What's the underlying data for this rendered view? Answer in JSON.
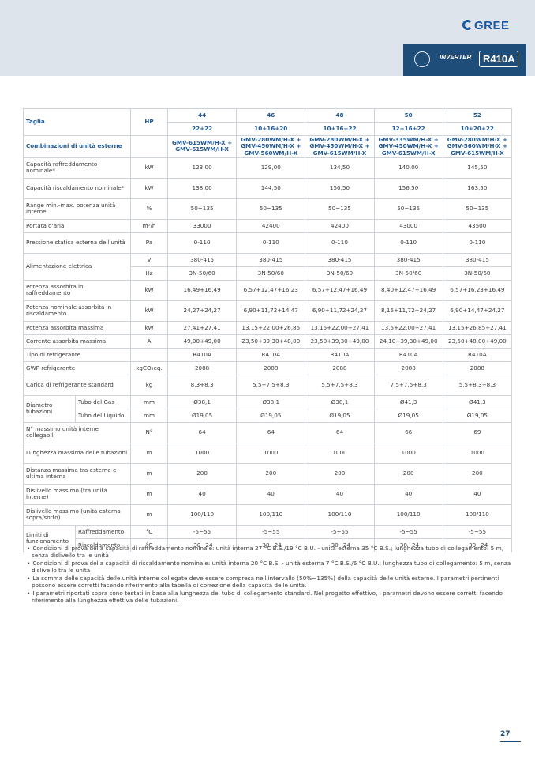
{
  "header": {
    "logo": "GREE",
    "badge_inverter": "INVERTER",
    "badge_refrigerant": "R410A"
  },
  "table": {
    "head": {
      "label": "Taglia",
      "unit": "HP",
      "sizes": [
        "44",
        "46",
        "48",
        "50",
        "52"
      ],
      "combos": [
        "22+22",
        "10+16+20",
        "10+16+22",
        "12+16+22",
        "10+20+22"
      ]
    },
    "rows": [
      {
        "label": "Combinazioni di unità esterne",
        "cells": [
          "GMV-615WM/H-X + GMV-615WM/H-X",
          "GMV-280WM/H-X + GMV-450WM/H-X + GMV-560WM/H-X",
          "GMV-280WM/H-X + GMV-450WM/H-X + GMV-615WM/H-X",
          "GMV-335WM/H-X + GMV-450WM/H-X + GMV-615WM/H-X",
          "GMV-280WM/H-X + GMV-560WM/H-X + GMV-615WM/H-X"
        ]
      },
      {
        "label": "Capacità raffreddamento nominale*",
        "unit": "kW",
        "cells": [
          "123,00",
          "129,00",
          "134,50",
          "140,00",
          "145,50"
        ]
      },
      {
        "label": "Capacità riscaldamento nominale*",
        "unit": "kW",
        "cells": [
          "138,00",
          "144,50",
          "150,50",
          "156,50",
          "163,50"
        ]
      },
      {
        "label": "Range min.-max. potenza unità interne",
        "unit": "%",
        "cells": [
          "50~135",
          "50~135",
          "50~135",
          "50~135",
          "50~135"
        ]
      },
      {
        "label": "Portata d'aria",
        "unit": "m³/h",
        "cells": [
          "33000",
          "42400",
          "42400",
          "43000",
          "43500"
        ]
      },
      {
        "label": "Pressione statica esterna dell'unità",
        "unit": "Pa",
        "cells": [
          "0-110",
          "0-110",
          "0-110",
          "0-110",
          "0-110"
        ]
      },
      {
        "label": "Alimentazione elettrica",
        "parts": [
          {
            "unit": "V",
            "cells": [
              "380-415",
              "380-415",
              "380-415",
              "380-415",
              "380-415"
            ]
          },
          {
            "unit": "Hz",
            "cells": [
              "3N-50/60",
              "3N-50/60",
              "3N-50/60",
              "3N-50/60",
              "3N-50/60"
            ]
          }
        ]
      },
      {
        "label": "Potenza assorbita in raffreddamento",
        "unit": "kW",
        "cells": [
          "16,49+16,49",
          "6,57+12,47+16,23",
          "6,57+12,47+16,49",
          "8,40+12,47+16,49",
          "6,57+16,23+16,49"
        ]
      },
      {
        "label": "Potenza nominale assorbita in riscaldamento",
        "unit": "kW",
        "cells": [
          "24,27+24,27",
          "6,90+11,72+14,47",
          "6,90+11,72+24,27",
          "8,15+11,72+24,27",
          "6,90+14,47+24,27"
        ]
      },
      {
        "label": "Potenza assorbita massima",
        "unit": "kW",
        "cells": [
          "27,41+27,41",
          "13,15+22,00+26,85",
          "13,15+22,00+27,41",
          "13,5+22,00+27,41",
          "13,15+26,85+27,41"
        ]
      },
      {
        "label": "Corrente assorbita massima",
        "unit": "A",
        "cells": [
          "49,00+49,00",
          "23,50+39,30+48,00",
          "23,50+39,30+49,00",
          "24,10+39,30+49,00",
          "23,50+48,00+49,00"
        ]
      },
      {
        "label": "Tipo di refrigerante",
        "cells": [
          "R410A",
          "R410A",
          "R410A",
          "R410A",
          "R410A"
        ]
      },
      {
        "label": "GWP refrigerante",
        "unit": "kgCO₂eq.",
        "cells": [
          "2088",
          "2088",
          "2088",
          "2088",
          "2088"
        ]
      },
      {
        "label": "Carica di refrigerante standard",
        "unit": "kg",
        "cells": [
          "8,3+8,3",
          "5,5+7,5+8,3",
          "5,5+7,5+8,3",
          "7,5+7,5+8,3",
          "5,5+8,3+8,3"
        ]
      },
      {
        "label": "Diametro tubazioni",
        "parts": [
          {
            "sub": "Tubo del Gas",
            "unit": "mm",
            "cells": [
              "Ø38,1",
              "Ø38,1",
              "Ø38,1",
              "Ø41,3",
              "Ø41,3"
            ]
          },
          {
            "sub": "Tubo del Liquido",
            "unit": "mm",
            "cells": [
              "Ø19,05",
              "Ø19,05",
              "Ø19,05",
              "Ø19,05",
              "Ø19,05"
            ]
          }
        ]
      },
      {
        "label": "N° massimo unità interne collegabili",
        "unit": "N°",
        "cells": [
          "64",
          "64",
          "64",
          "66",
          "69"
        ]
      },
      {
        "label": "Lunghezza massima delle tubazioni",
        "unit": "m",
        "cells": [
          "1000",
          "1000",
          "1000",
          "1000",
          "1000"
        ]
      },
      {
        "label": "Distanza massima tra esterna e ultima interna",
        "unit": "m",
        "cells": [
          "200",
          "200",
          "200",
          "200",
          "200"
        ]
      },
      {
        "label": "Dislivello massimo (tra unità interne)",
        "unit": "m",
        "cells": [
          "40",
          "40",
          "40",
          "40",
          "40"
        ]
      },
      {
        "label": "Dislivello massimo (unità esterna sopra/sotto)",
        "unit": "m",
        "cells": [
          "100/110",
          "100/110",
          "100/110",
          "100/110",
          "100/110"
        ]
      },
      {
        "label": "Limiti di funzionamento",
        "parts": [
          {
            "sub": "Raffreddamento",
            "unit": "°C",
            "cells": [
              "-5~55",
              "-5~55",
              "-5~55",
              "-5~55",
              "-5~55"
            ]
          },
          {
            "sub": "Riscaldamento",
            "unit": "°C",
            "cells": [
              "-30~24",
              "-30~24",
              "-30~24",
              "-30~24",
              "-30~24"
            ]
          }
        ]
      }
    ]
  },
  "notes": [
    "Condizioni di prova della capacità di raffreddamento nominale: unità interna 27 °C B.S./19 °C B.U. - unità esterna 35 °C B.S.; lunghezza tubo di collegamento: 5 m, senza dislivello tra le unità",
    "Condizioni di prova della capacità di riscaldamento nominale: unità interna 20 °C B.S. - unità esterna 7 °C B.S./6 °C B.U.; lunghezza tubo di collegamento: 5 m, senza dislivello tra le unità",
    "La somma delle capacità delle unità interne collegate deve essere compresa nell'intervallo (50%~135%) della capacità delle unità esterne. I parametri pertinenti possono essere corretti facendo riferimento alla tabella di correzione della capacità delle unità.",
    "I parametri riportati sopra sono testati in base alla lunghezza del tubo di collegamento standard. Nel progetto effettivo, i parametri devono essere corretti facendo riferimento alla lunghezza effettiva delle tubazioni."
  ],
  "page_number": "27"
}
